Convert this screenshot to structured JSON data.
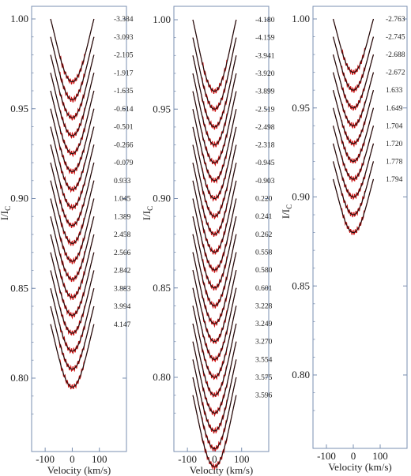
{
  "chart_data": [
    {
      "type": "line",
      "title": "",
      "xlabel": "Velocity (km/s)",
      "ylabel": "I/I_C",
      "xlim": [
        -150,
        200
      ],
      "ylim": [
        0.77,
        1.01
      ],
      "xticks": [
        -100,
        0,
        100
      ],
      "yticks": [
        1.0,
        0.95,
        0.9,
        0.85,
        0.8
      ],
      "profile_depth": 0.035,
      "profile_halfwidth_kms": 80,
      "vertical_shift": 0.01,
      "series": [
        {
          "label": "-3.384",
          "color_model": "#111111",
          "color_obs": "#cc1111"
        },
        {
          "label": "-3.093"
        },
        {
          "label": "-2.105"
        },
        {
          "label": "-1.917"
        },
        {
          "label": "-1.635"
        },
        {
          "label": "-0.614"
        },
        {
          "label": "-0.501"
        },
        {
          "label": "-0.266"
        },
        {
          "label": "-0.079"
        },
        {
          "label": "0.933"
        },
        {
          "label": "1.045"
        },
        {
          "label": "1.389"
        },
        {
          "label": "2.458"
        },
        {
          "label": "2.566"
        },
        {
          "label": "2.842"
        },
        {
          "label": "3.883"
        },
        {
          "label": "3.994"
        },
        {
          "label": "4.147"
        }
      ]
    },
    {
      "type": "line",
      "title": "",
      "xlabel": "Velocity (km/s)",
      "ylabel": "I/I_C",
      "xlim": [
        -150,
        200
      ],
      "ylim": [
        0.76,
        1.01
      ],
      "xticks": [
        -100,
        0,
        100
      ],
      "yticks": [
        1.0,
        0.95,
        0.9,
        0.85,
        0.8
      ],
      "profile_depth": 0.04,
      "profile_halfwidth_kms": 80,
      "vertical_shift": 0.01,
      "series": [
        {
          "label": "-4.180"
        },
        {
          "label": "-4.159"
        },
        {
          "label": "-3.941"
        },
        {
          "label": "-3.920"
        },
        {
          "label": "-3.899"
        },
        {
          "label": "-2.519"
        },
        {
          "label": "-2.498"
        },
        {
          "label": "-2.318"
        },
        {
          "label": "-0.945"
        },
        {
          "label": "-0.903"
        },
        {
          "label": "0.220"
        },
        {
          "label": "0.241"
        },
        {
          "label": "0.262"
        },
        {
          "label": "0.558"
        },
        {
          "label": "0.580"
        },
        {
          "label": "0.601"
        },
        {
          "label": "3.228"
        },
        {
          "label": "3.249"
        },
        {
          "label": "3.270"
        },
        {
          "label": "3.554"
        },
        {
          "label": "3.575"
        },
        {
          "label": "3.596"
        }
      ]
    },
    {
      "type": "line",
      "title": "",
      "xlabel": "Velocity (km/s)",
      "ylabel": "I/I_C",
      "xlim": [
        -150,
        200
      ],
      "ylim": [
        0.76,
        1.01
      ],
      "xticks": [
        -100,
        0,
        100
      ],
      "yticks": [
        1.0,
        0.95,
        0.9,
        0.85,
        0.8
      ],
      "profile_depth": 0.03,
      "profile_halfwidth_kms": 75,
      "vertical_shift": 0.01,
      "series": [
        {
          "label": "-2.763"
        },
        {
          "label": "-2.745"
        },
        {
          "label": "-2.688"
        },
        {
          "label": "-2.672"
        },
        {
          "label": "1.633"
        },
        {
          "label": "1.649"
        },
        {
          "label": "1.704"
        },
        {
          "label": "1.720"
        },
        {
          "label": "1.778"
        },
        {
          "label": "1.794"
        }
      ]
    }
  ],
  "colors": {
    "model": "#111111",
    "observed": "#cc1111",
    "axis": "#7a8fb0"
  }
}
